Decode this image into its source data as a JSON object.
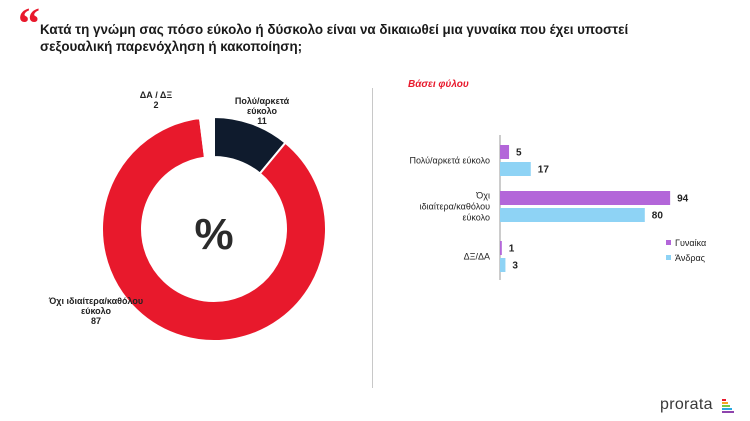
{
  "header": {
    "quote_mark": "“",
    "title": "Κατά τη γνώμη σας πόσο εύκολο ή δύσκολο είναι να δικαιωθεί μια γυναίκα που έχει υποστεί σεξουαλική παρενόχληση ή κακοποίηση;"
  },
  "donut": {
    "center_label": "%",
    "labels": [
      {
        "lines": [
          "Πολύ/αρκετά",
          "εύκολο"
        ],
        "value": "11"
      },
      {
        "lines": [
          "Όχι ιδιαίτερα/καθόλου",
          "εύκολο"
        ],
        "value": "87"
      },
      {
        "lines": [
          "ΔΑ / ΔΞ"
        ],
        "value": "2"
      }
    ]
  },
  "bar_panel": {
    "subtitle": "Βάσει φύλου"
  },
  "chart_data": [
    {
      "type": "pie",
      "title": "%",
      "categories": [
        "Πολύ/αρκετά εύκολο",
        "Όχι ιδιαίτερα/καθόλου εύκολο",
        "ΔΑ / ΔΞ"
      ],
      "values": [
        11,
        87,
        2
      ],
      "colors": [
        "#0f1b2d",
        "#e8192c",
        "#ffffff"
      ],
      "donut": true
    },
    {
      "type": "bar",
      "orientation": "horizontal",
      "categories": [
        {
          "lines": [
            "Πολύ/αρκετά εύκολο"
          ]
        },
        {
          "lines": [
            "Όχι",
            "ιδιαίτερα/καθόλου",
            "εύκολο"
          ]
        },
        {
          "lines": [
            "ΔΞ/ΔΑ"
          ]
        }
      ],
      "series": [
        {
          "name": "Γυναίκα",
          "values": [
            5,
            94,
            1
          ],
          "color": "#b366d9"
        },
        {
          "name": "Άνδρας",
          "values": [
            17,
            80,
            3
          ],
          "color": "#8ed3f5"
        }
      ],
      "xlim": [
        0,
        100
      ],
      "legend": "right"
    }
  ],
  "brand": {
    "name": "prorata",
    "bar_colors": [
      "#e8192c",
      "#f5a623",
      "#7ac943",
      "#29a9e0",
      "#8e44ad"
    ]
  }
}
